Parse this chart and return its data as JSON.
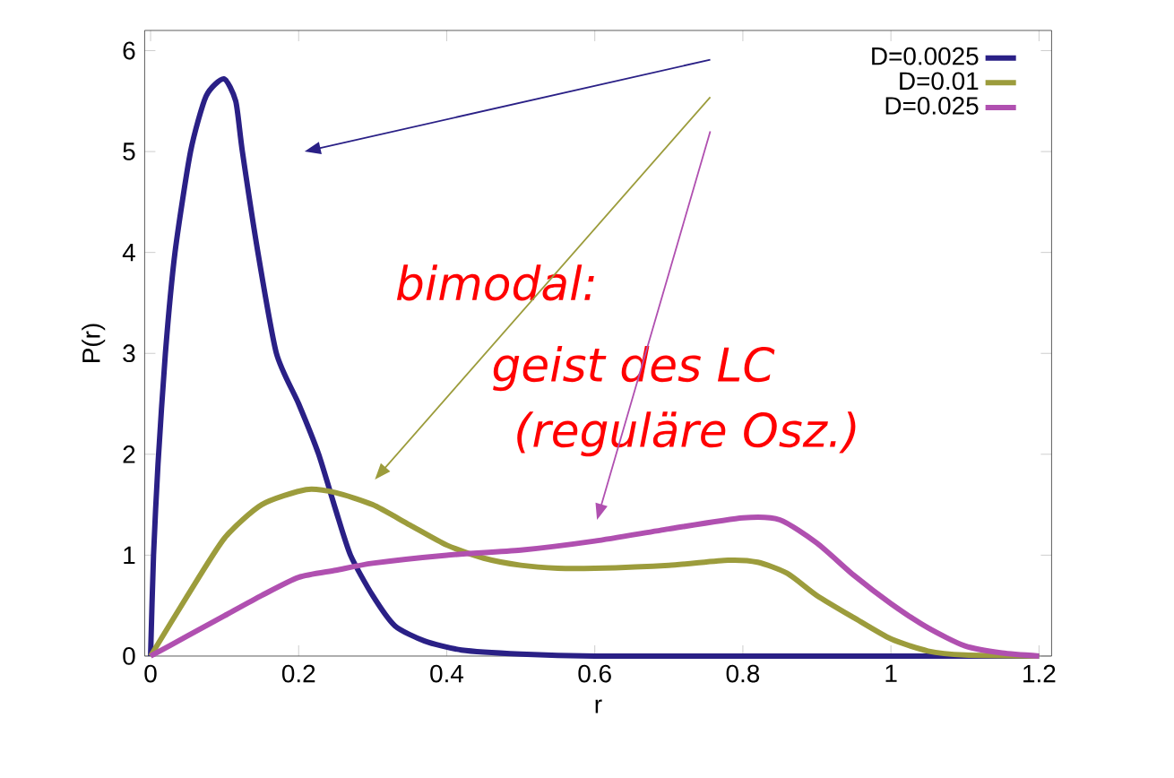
{
  "chart_data": {
    "type": "line",
    "xlabel": "r",
    "ylabel": "P(r)",
    "xlim": [
      -0.008,
      1.217
    ],
    "ylim": [
      0,
      6.2
    ],
    "xticks": [
      0,
      0.2,
      0.4,
      0.6,
      0.8,
      1,
      1.2
    ],
    "yticks": [
      0,
      1,
      2,
      3,
      4,
      5,
      6
    ],
    "grid": false,
    "legend": "top right",
    "marker": "none",
    "line_style": "solid",
    "annotations": [
      "bimodal:",
      "geist des LC",
      "(reguläre Osz.)"
    ],
    "series": [
      {
        "name": "D=0.0025",
        "color": "#2a2086",
        "x": [
          0,
          0.004,
          0.01,
          0.02,
          0.033,
          0.054,
          0.075,
          0.099,
          0.115,
          0.124,
          0.145,
          0.17,
          0.2,
          0.227,
          0.25,
          0.27,
          0.3,
          0.33,
          0.37,
          0.42,
          0.5,
          0.6,
          0.8,
          1.0,
          1.2
        ],
        "values": [
          0,
          1,
          1.9,
          3,
          4,
          5,
          5.55,
          5.72,
          5.5,
          5,
          4,
          3,
          2.5,
          2,
          1.45,
          1,
          0.6,
          0.3,
          0.15,
          0.06,
          0.02,
          0,
          0,
          0,
          0
        ]
      },
      {
        "name": "D=0.01",
        "color": "#9c9c3c",
        "x": [
          0,
          0.05,
          0.1,
          0.15,
          0.21,
          0.25,
          0.3,
          0.35,
          0.4,
          0.45,
          0.5,
          0.55,
          0.6,
          0.7,
          0.78,
          0.82,
          0.86,
          0.9,
          0.95,
          1.0,
          1.05,
          1.1,
          1.2
        ],
        "values": [
          0,
          0.6,
          1.17,
          1.5,
          1.65,
          1.62,
          1.5,
          1.3,
          1.1,
          0.97,
          0.9,
          0.87,
          0.87,
          0.9,
          0.95,
          0.93,
          0.82,
          0.6,
          0.38,
          0.17,
          0.05,
          0.01,
          0
        ]
      },
      {
        "name": "D=0.025",
        "color": "#b050b0",
        "x": [
          0,
          0.05,
          0.1,
          0.15,
          0.2,
          0.25,
          0.3,
          0.4,
          0.5,
          0.6,
          0.7,
          0.8,
          0.85,
          0.9,
          0.95,
          1.0,
          1.05,
          1.1,
          1.15,
          1.2
        ],
        "values": [
          0,
          0.2,
          0.4,
          0.6,
          0.78,
          0.85,
          0.92,
          1.0,
          1.05,
          1.14,
          1.26,
          1.37,
          1.35,
          1.12,
          0.8,
          0.52,
          0.28,
          0.1,
          0.03,
          0
        ]
      }
    ]
  }
}
